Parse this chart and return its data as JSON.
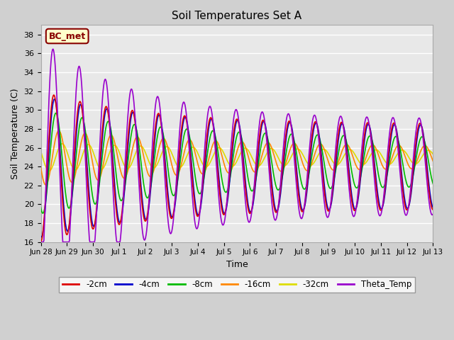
{
  "title": "Soil Temperatures Set A",
  "xlabel": "Time",
  "ylabel": "Soil Temperature (C)",
  "ylim": [
    16,
    39
  ],
  "yticks": [
    16,
    18,
    20,
    22,
    24,
    26,
    28,
    30,
    32,
    34,
    36,
    38
  ],
  "annotation": "BC_met",
  "fig_bg_color": "#d0d0d0",
  "plot_bg_color": "#e8e8e8",
  "line_colors": {
    "-2cm": "#dd0000",
    "-4cm": "#0000cc",
    "-8cm": "#00bb00",
    "-16cm": "#ff8800",
    "-32cm": "#dddd00",
    "Theta_Temp": "#9900cc"
  },
  "legend_labels": [
    "-2cm",
    "-4cm",
    "-8cm",
    "-16cm",
    "-32cm",
    "Theta_Temp"
  ],
  "x_tick_labels": [
    "Jun 28",
    "Jun 29",
    "Jun 30",
    "Jul 1",
    "Jul 2",
    "Jul 3",
    "Jul 4",
    "Jul 5",
    "Jul 6",
    "Jul 7",
    "Jul 8",
    "Jul 9",
    "Jul 10",
    "Jul 11",
    "Jul 12",
    "Jul 13"
  ],
  "n_days": 16,
  "pts_per_day": 48
}
